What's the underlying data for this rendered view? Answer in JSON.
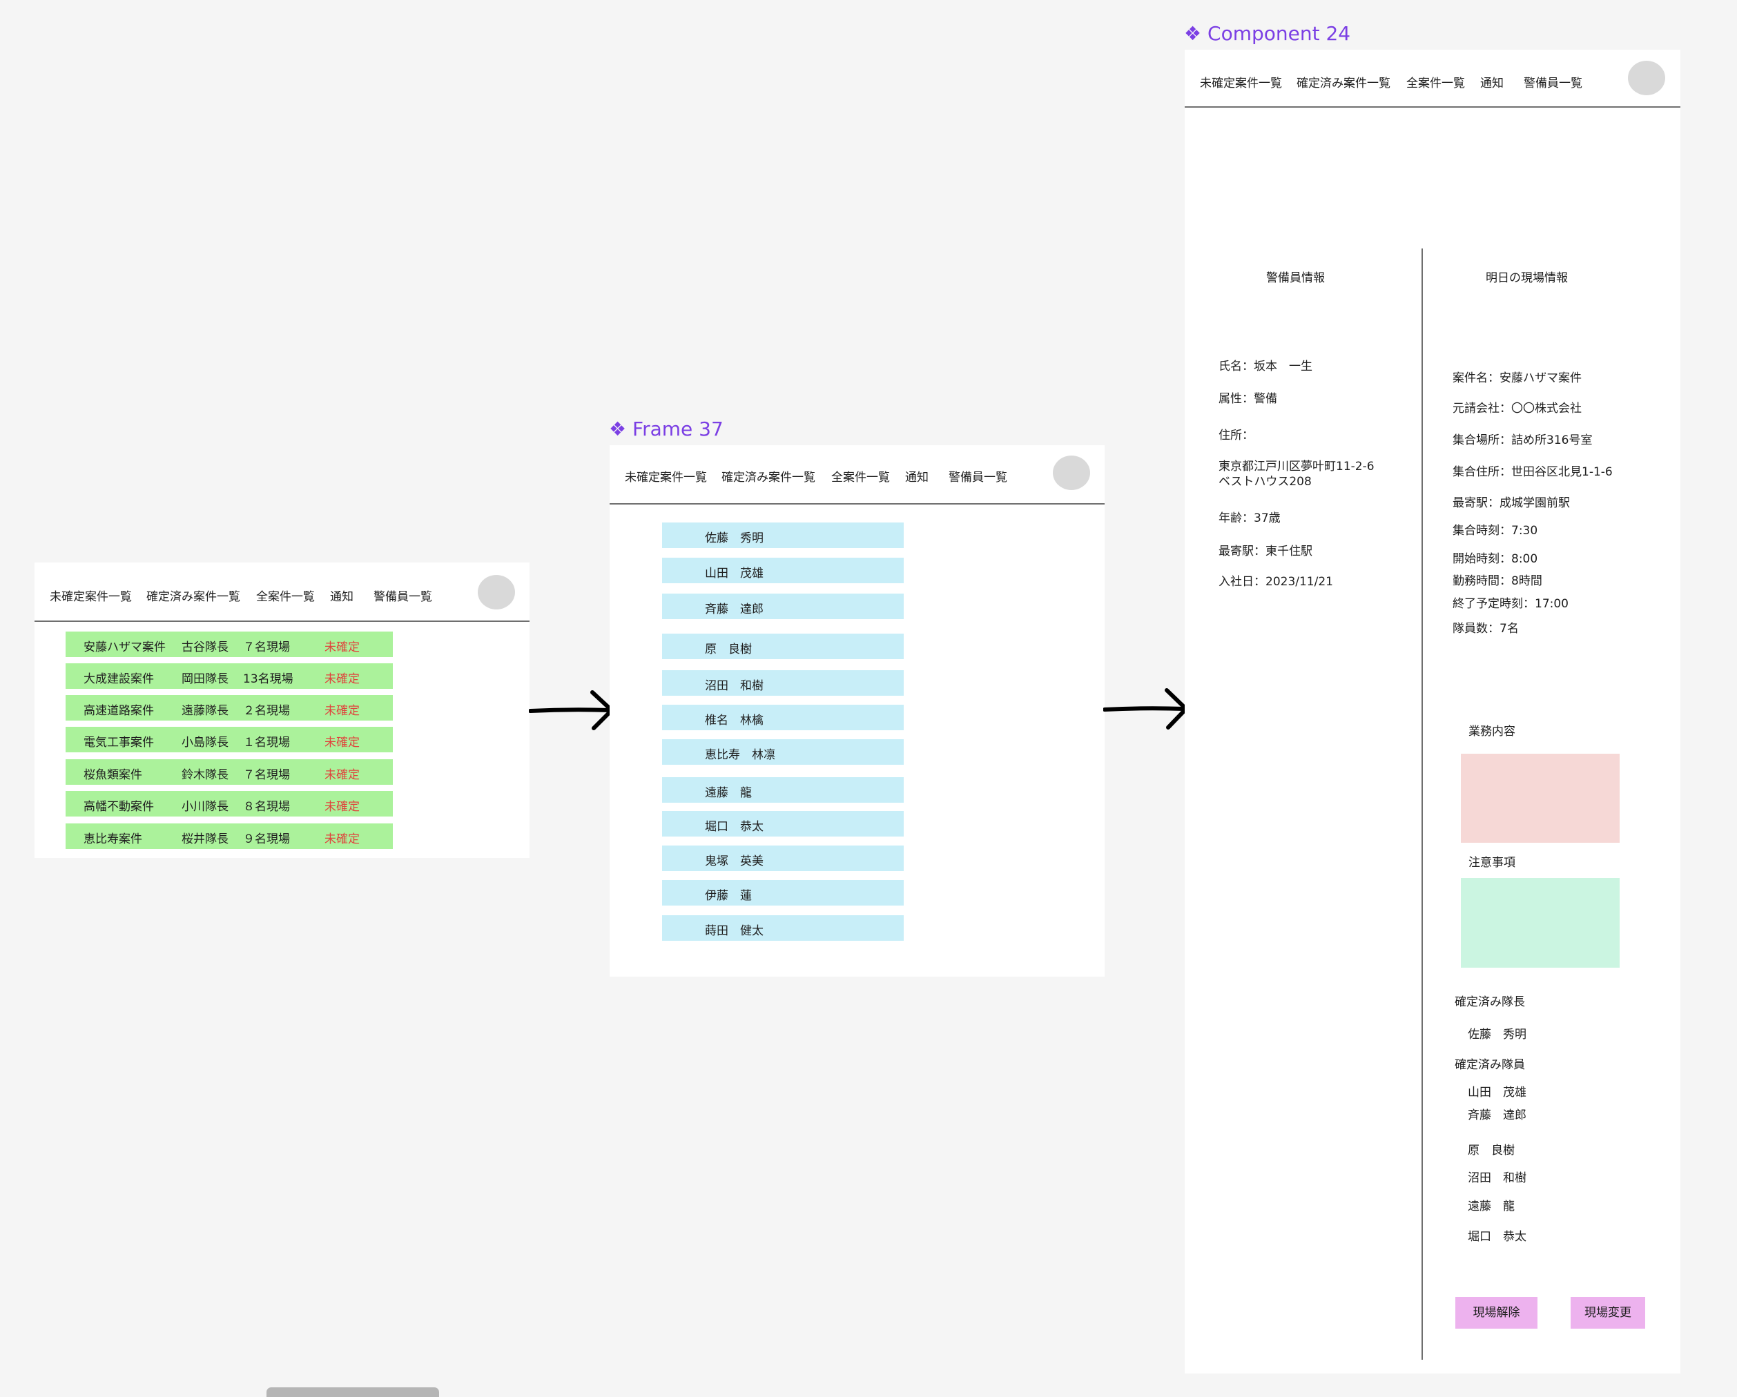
{
  "nav": {
    "items": [
      "未確定案件一覧",
      "確定済み案件一覧",
      "全案件一覧",
      "通知",
      "警備員一覧"
    ]
  },
  "frame1": {
    "rows": [
      {
        "name": "安藤ハザマ案件",
        "leader": "古谷隊長",
        "count": "７名現場",
        "status": "未確定"
      },
      {
        "name": "大成建設案件",
        "leader": "岡田隊長",
        "count": "13名現場",
        "status": "未確定"
      },
      {
        "name": "高速道路案件",
        "leader": "遠藤隊長",
        "count": "２名現場",
        "status": "未確定"
      },
      {
        "name": "電気工事案件",
        "leader": "小島隊長",
        "count": "１名現場",
        "status": "未確定"
      },
      {
        "name": "桜魚類案件",
        "leader": "鈴木隊長",
        "count": "７名現場",
        "status": "未確定"
      },
      {
        "name": "高幡不動案件",
        "leader": "小川隊長",
        "count": "８名現場",
        "status": "未確定"
      },
      {
        "name": "恵比寿案件",
        "leader": "桜井隊長",
        "count": "９名現場",
        "status": "未確定"
      }
    ]
  },
  "frame2": {
    "label": "Frame 37",
    "guards": [
      "佐藤　秀明",
      "山田　茂雄",
      "斉藤　達郎",
      "原　良樹",
      "沼田　和樹",
      "椎名　林檎",
      "恵比寿　林凛",
      "遠藤　龍",
      "堀口　恭太",
      "鬼塚　英美",
      "伊藤　蓮",
      "蒔田　健太"
    ]
  },
  "frame3": {
    "label": "Component 24",
    "guard_info_title": "警備員情報",
    "site_info_title": "明日の現場情報",
    "guard": {
      "name": "氏名：坂本　一生",
      "attr": "属性：警備",
      "address_label": "住所：",
      "address_line1": "東京都江戸川区夢叶町11-2-6",
      "address_line2": "ベストハウス208",
      "age": "年齢：37歳",
      "station": "最寄駅：東千住駅",
      "joined": "入社日：2023/11/21"
    },
    "site": {
      "case": "案件名：安藤ハザマ案件",
      "contractor": "元請会社：〇〇株式会社",
      "meeting_place": "集合場所：詰め所316号室",
      "meeting_address": "集合住所：世田谷区北見1-1-6",
      "station": "最寄駅：成城学園前駅",
      "meet_time": "集合時刻：7:30",
      "start_time": "開始時刻：8:00",
      "work_hours": "勤務時間：8時間",
      "end_time": "終了予定時刻：17:00",
      "members": "隊員数：7名"
    },
    "work_title": "業務内容",
    "caution_title": "注意事項",
    "leader_title": "確定済み隊長",
    "leader": "佐藤　秀明",
    "members_title": "確定済み隊員",
    "members_list": [
      "山田　茂雄",
      "斉藤　達郎",
      "原　良樹",
      "沼田　和樹",
      "遠藤　龍",
      "堀口　恭太"
    ],
    "release_button": "現場解除",
    "change_button": "現場変更"
  },
  "colors": {
    "row_bg": "#abf29b",
    "status_red": "#e0433c",
    "guard_cell_bg": "#c8eef8",
    "work_box": "#f6d8d6",
    "caution_box": "#cbf5e1",
    "button_bg": "#edb2ee",
    "frame_label": "#7b3fe4"
  }
}
